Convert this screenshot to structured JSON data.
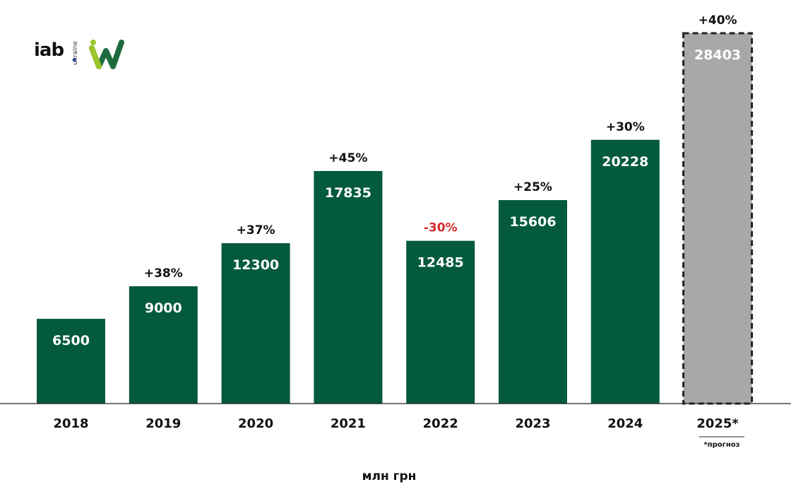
{
  "logo": {
    "iab": "iab",
    "iab_sub": "ukraine",
    "partner": "iw"
  },
  "colors": {
    "bar": "#035a3e",
    "forecast_bar": "#a8a8a8",
    "negative": "#d42a2a",
    "text": "#111111"
  },
  "chart_data": {
    "type": "bar",
    "categories": [
      "2018",
      "2019",
      "2020",
      "2021",
      "2022",
      "2023",
      "2024",
      "2025*"
    ],
    "values": [
      6500,
      9000,
      12300,
      17835,
      12485,
      15606,
      20228,
      28403
    ],
    "changes": [
      "",
      "+38%",
      "+37%",
      "+45%",
      "-30%",
      "+25%",
      "+30%",
      "+40%"
    ],
    "forecast": [
      false,
      false,
      false,
      false,
      false,
      false,
      false,
      true
    ],
    "xlabel": "млн грн",
    "ylabel": "",
    "ylim": [
      0,
      28403
    ],
    "grid": false,
    "footnote": "*прогноз"
  }
}
